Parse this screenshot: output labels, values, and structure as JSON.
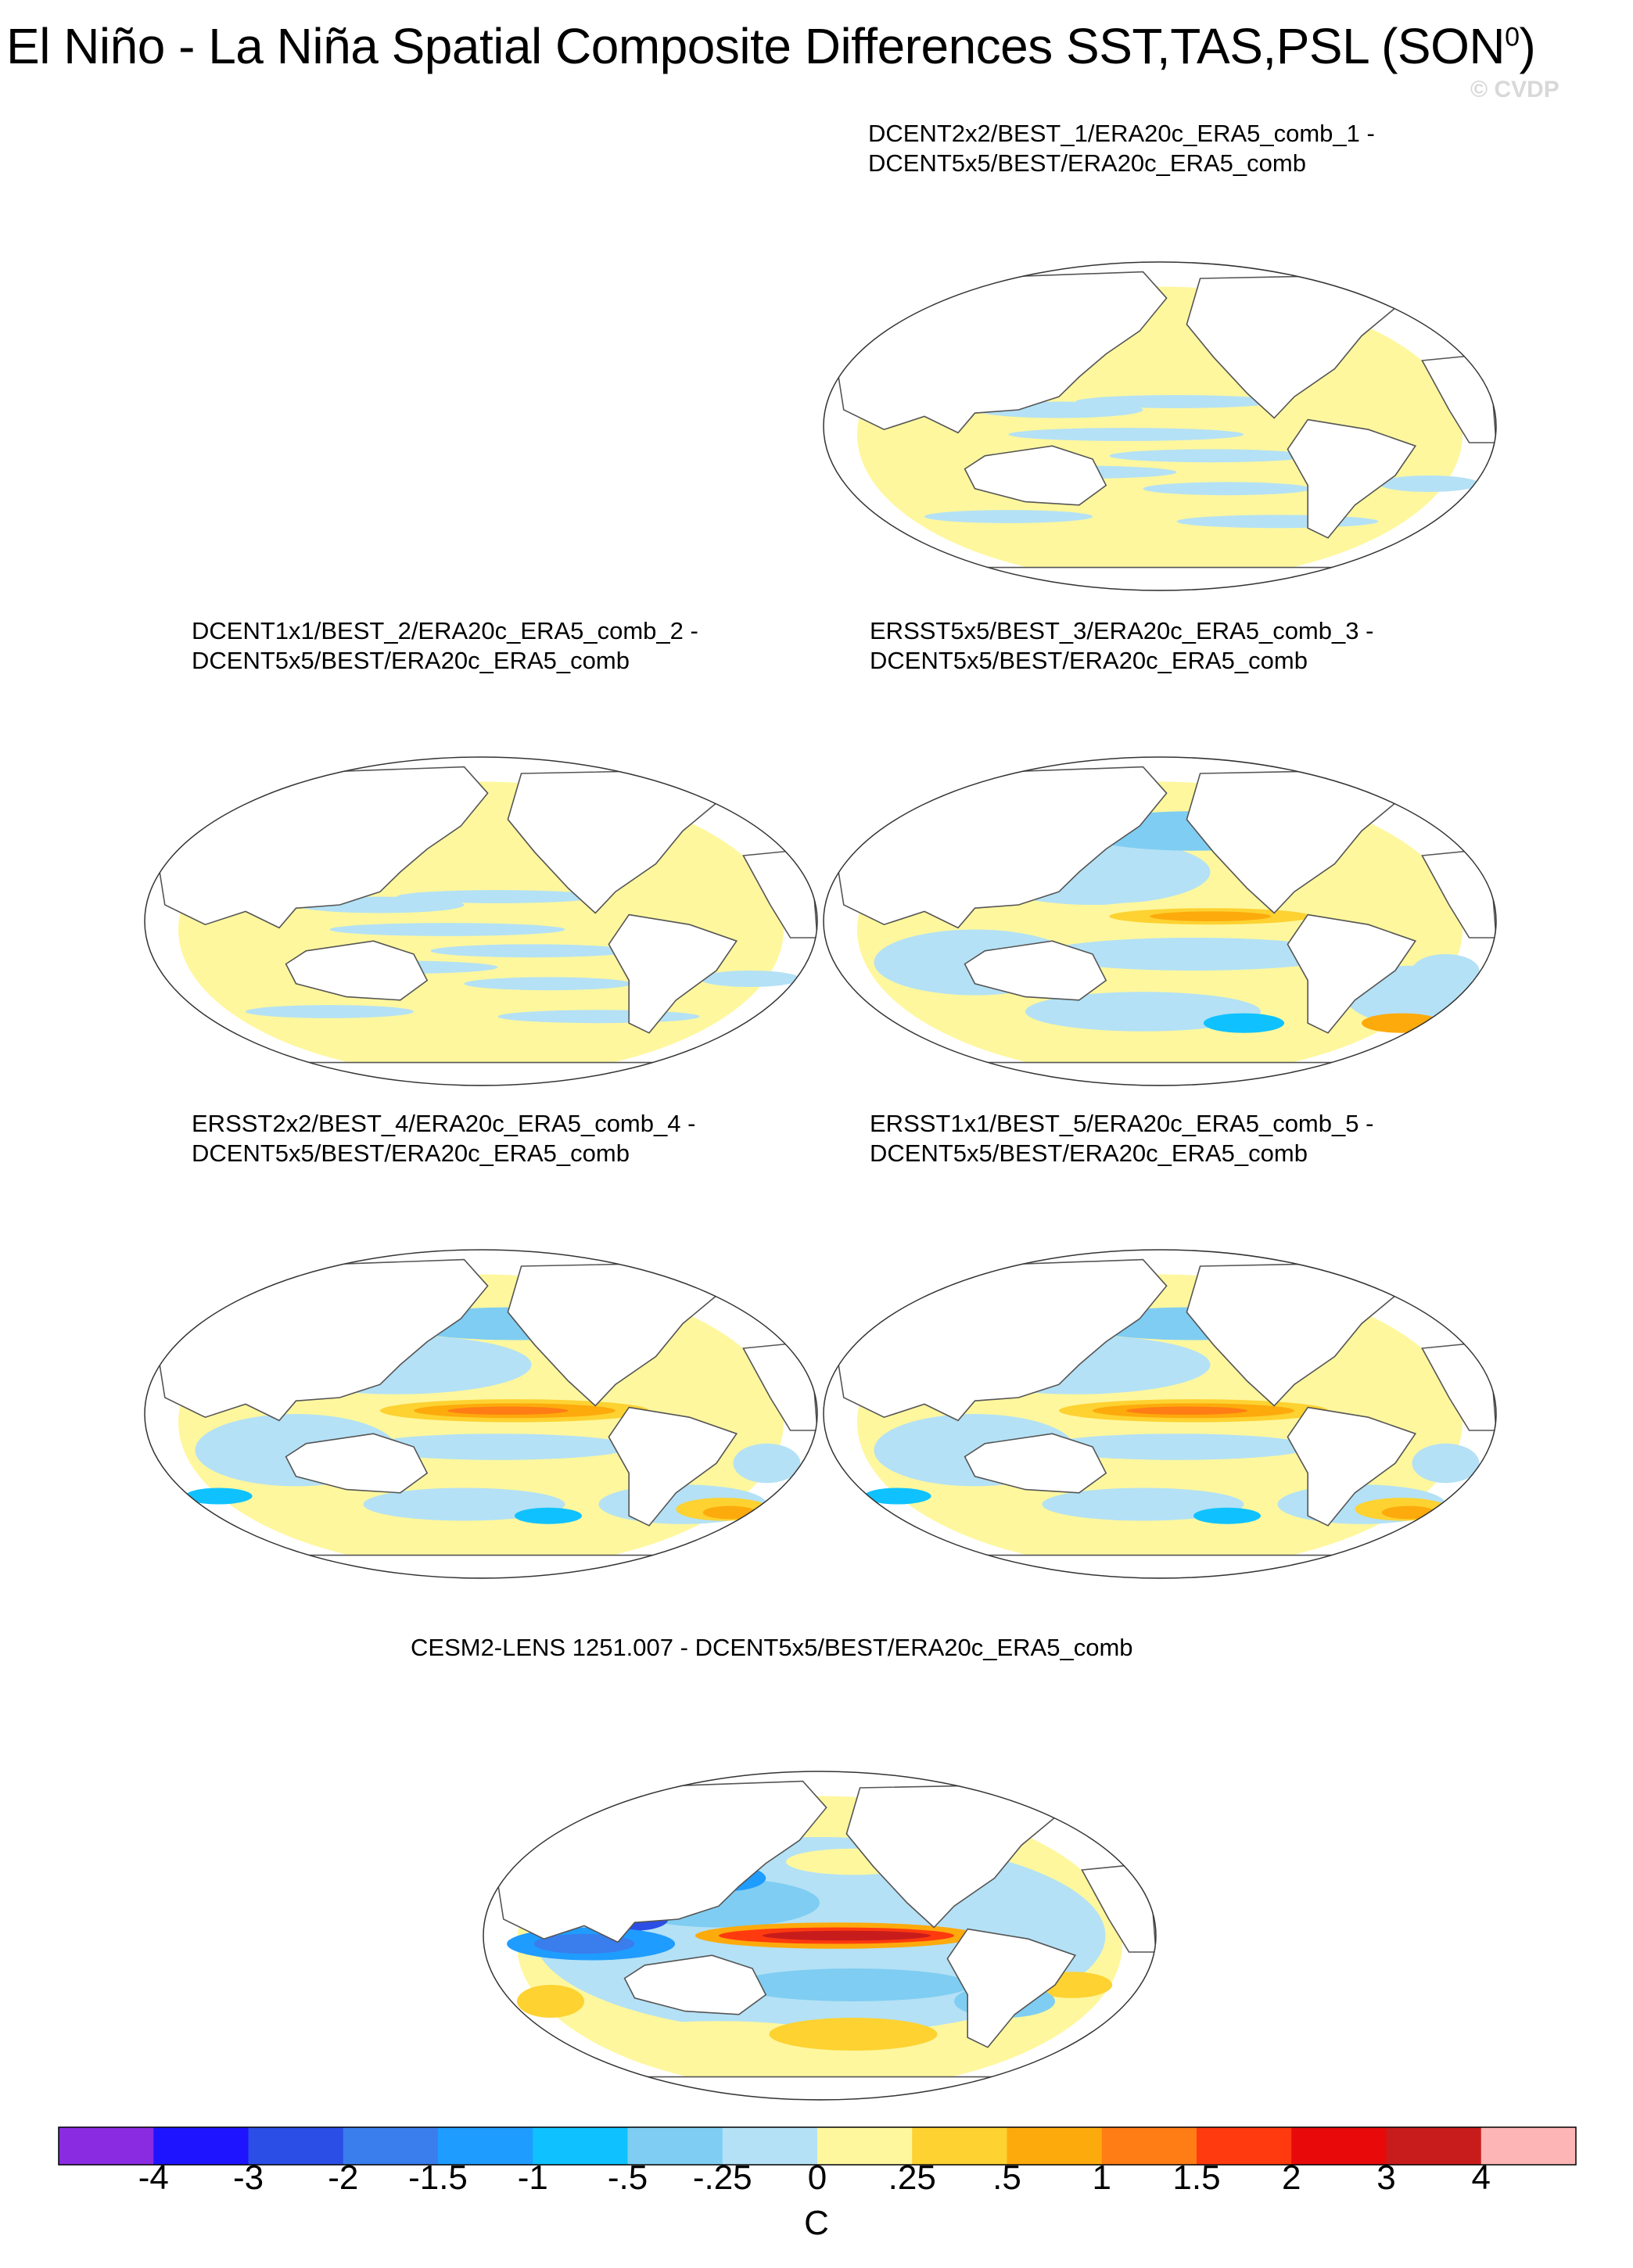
{
  "title": {
    "main": "El Niño - La Niña Spatial Composite Differences SST,TAS,PSL (SON",
    "superscript": "0",
    "close": ")"
  },
  "watermark": "© CVDP",
  "chart_data": {
    "type": "heatmap",
    "description": "Composite difference maps (Robinson projection)",
    "panels": [
      {
        "id": "p1",
        "line1": "DCENT2x2/BEST_1/ERA20c_ERA5_comb_1 -",
        "line2": "DCENT5x5/BEST/ERA20c_ERA5_comb",
        "pattern": "near-zero"
      },
      {
        "id": "p2",
        "line1": "DCENT1x1/BEST_2/ERA20c_ERA5_comb_2 -",
        "line2": "DCENT5x5/BEST/ERA20c_ERA5_comb",
        "pattern": "near-zero"
      },
      {
        "id": "p3",
        "line1": "ERSST5x5/BEST_3/ERA20c_ERA5_comb_3 -",
        "line2": "DCENT5x5/BEST/ERA20c_ERA5_comb",
        "pattern": "moderate-enso"
      },
      {
        "id": "p4",
        "line1": "ERSST2x2/BEST_4/ERA20c_ERA5_comb_4 -",
        "line2": "DCENT5x5/BEST/ERA20c_ERA5_comb",
        "pattern": "strong-enso"
      },
      {
        "id": "p5",
        "line1": "ERSST1x1/BEST_5/ERA20c_ERA5_comb_5 -",
        "line2": "DCENT5x5/BEST/ERA20c_ERA5_comb",
        "pattern": "strong-enso"
      },
      {
        "id": "p6",
        "line1": "CESM2-LENS 1251.007 - DCENT5x5/BEST/ERA20c_ERA5_comb",
        "line2": "",
        "pattern": "model-enso"
      }
    ],
    "colorbar": {
      "units": "C",
      "tick_labels": [
        "-4",
        "-3",
        "-2",
        "-1.5",
        "-1",
        "-.5",
        "-.25",
        "0",
        ".25",
        ".5",
        "1",
        "1.5",
        "2",
        "3",
        "4"
      ],
      "levels": [
        -4,
        -3,
        -2,
        -1.5,
        -1,
        -0.5,
        -0.25,
        0,
        0.25,
        0.5,
        1,
        1.5,
        2,
        3,
        4
      ],
      "colors": [
        "#8a2be2",
        "#1f14ff",
        "#2b4ee6",
        "#3a7ded",
        "#1f9cff",
        "#0fc2ff",
        "#7fcdf2",
        "#b4e1f5",
        "#fef79e",
        "#fdd231",
        "#fdaa0c",
        "#ff7d14",
        "#ff3a0f",
        "#e80a0a",
        "#c81c1c",
        "#fdb5b5"
      ]
    }
  }
}
